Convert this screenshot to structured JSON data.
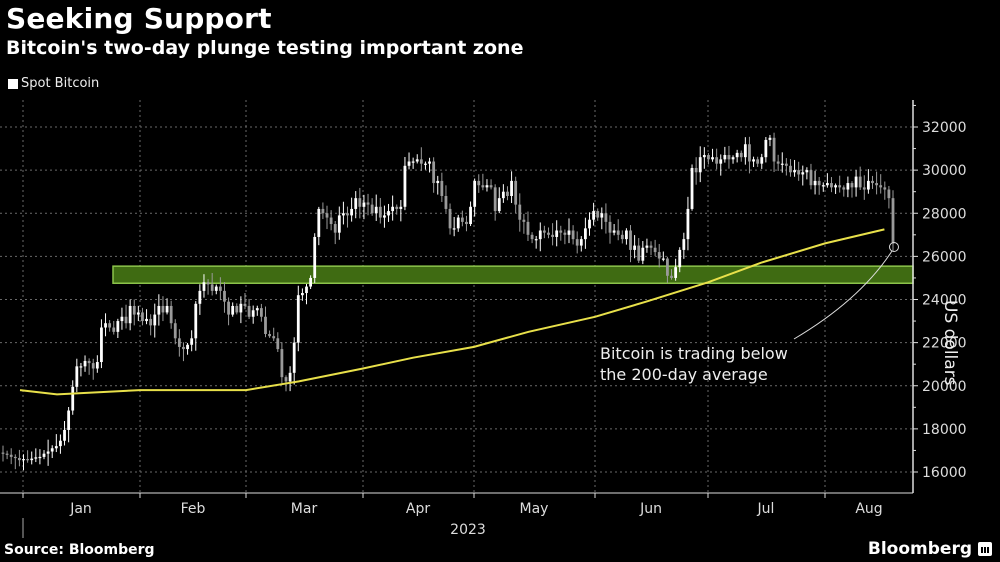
{
  "header": {
    "title": "Seeking Support",
    "subtitle": "Bitcoin's two-day plunge testing important zone"
  },
  "legend": {
    "items": [
      {
        "label": "Spot Bitcoin",
        "color": "#ffffff",
        "icon": "square-swatch-icon"
      }
    ]
  },
  "footer": {
    "source": "Source: Bloomberg",
    "brand": "Bloomberg",
    "brand_icon": "bloomberg-chart-icon"
  },
  "annotation": {
    "line1": "Bitcoin is trading below",
    "line2": "the 200-day average"
  },
  "colors": {
    "background": "#000000",
    "up_candle": "#ffffff",
    "down_candle": "#9a9a9a",
    "ma_line": "#e8e04a",
    "support_zone_fill": "#3f6b12",
    "support_zone_border": "#8cc34b",
    "grid": "#6a6a6a"
  },
  "chart_data": {
    "type": "line",
    "title": "Seeking Support",
    "subtitle": "Bitcoin's two-day plunge testing important zone",
    "xlabel": "2023",
    "ylabel": "US dollars",
    "ylim": [
      15000,
      32500
    ],
    "y_ticks": [
      16000,
      18000,
      20000,
      22000,
      24000,
      26000,
      28000,
      30000,
      32000
    ],
    "x_ticks": [
      "Jan",
      "Feb",
      "Mar",
      "Apr",
      "May",
      "Jun",
      "Jul",
      "Aug"
    ],
    "x_year_label": "2023",
    "grid": true,
    "legend_position": "top-left",
    "support_zone": {
      "low": 24800,
      "high": 25500,
      "start": "Jan 20",
      "end": "Aug 17"
    },
    "series": [
      {
        "name": "Spot Bitcoin",
        "style": "candlestick",
        "dates_start": "2022-12-25",
        "frequency": "daily",
        "close": [
          16850,
          16800,
          16700,
          16650,
          16550,
          16600,
          16550,
          16620,
          16680,
          16700,
          16850,
          16950,
          17100,
          17200,
          17450,
          17950,
          18850,
          19950,
          20900,
          20900,
          21150,
          21050,
          20800,
          21100,
          22700,
          22900,
          22700,
          22500,
          23000,
          23200,
          22900,
          23700,
          23300,
          23400,
          23000,
          23100,
          22800,
          23300,
          23700,
          23400,
          23700,
          22900,
          22200,
          21800,
          21700,
          21900,
          22200,
          23800,
          24400,
          24800,
          24700,
          24400,
          24600,
          24400,
          23900,
          23300,
          23700,
          23400,
          23800,
          23700,
          23200,
          23500,
          23600,
          23200,
          22400,
          22300,
          22200,
          21700,
          20400,
          20200,
          20600,
          22000,
          24200,
          24300,
          24600,
          25000,
          26900,
          28200,
          28000,
          27800,
          27500,
          27100,
          27900,
          28000,
          27900,
          28200,
          28700,
          28300,
          28500,
          28400,
          28000,
          28300,
          27800,
          27900,
          28100,
          28300,
          28200,
          28300,
          30200,
          30400,
          30400,
          30500,
          30300,
          30300,
          30400,
          29400,
          29500,
          28800,
          28200,
          27300,
          27300,
          27800,
          27600,
          27500,
          28300,
          29500,
          29300,
          29200,
          29300,
          29200,
          28100,
          28700,
          29000,
          28800,
          29500,
          28400,
          27700,
          27600,
          27000,
          26800,
          26800,
          27200,
          27100,
          27000,
          26900,
          27200,
          27100,
          27000,
          27200,
          26800,
          26500,
          26800,
          27300,
          27700,
          28100,
          27800,
          28000,
          27600,
          27100,
          27200,
          27000,
          26800,
          27200,
          26300,
          26500,
          25800,
          26400,
          26500,
          26400,
          26200,
          25900,
          25900,
          25100,
          25000,
          25500,
          26300,
          26800,
          28200,
          30100,
          29900,
          30600,
          30700,
          30500,
          30600,
          30300,
          30500,
          30700,
          30500,
          30600,
          30800,
          30600,
          31200,
          30400,
          30500,
          30300,
          30600,
          31400,
          31500,
          30400,
          30300,
          30300,
          30200,
          29900,
          30000,
          29800,
          29900,
          30000,
          29300,
          29500,
          29300,
          29300,
          29400,
          29200,
          29300,
          29200,
          29100,
          29400,
          29200,
          29700,
          29200,
          29100,
          29500,
          29400,
          29300,
          29200,
          29100,
          28700,
          26600
        ],
        "values_note": "approximate daily closes read from candle bodies"
      },
      {
        "name": "200-day moving average",
        "style": "line",
        "color": "#e8e04a",
        "points": [
          {
            "date": "Dec 25",
            "value": 19800
          },
          {
            "date": "Jan 10",
            "value": 19600
          },
          {
            "date": "Feb 1",
            "value": 19800
          },
          {
            "date": "Mar 1",
            "value": 19800
          },
          {
            "date": "Mar 15",
            "value": 20200
          },
          {
            "date": "Apr 1",
            "value": 20800
          },
          {
            "date": "Apr 15",
            "value": 21300
          },
          {
            "date": "May 1",
            "value": 21800
          },
          {
            "date": "May 15",
            "value": 22500
          },
          {
            "date": "Jun 1",
            "value": 23200
          },
          {
            "date": "Jun 15",
            "value": 23900
          },
          {
            "date": "Jul 1",
            "value": 24800
          },
          {
            "date": "Jul 15",
            "value": 25700
          },
          {
            "date": "Aug 1",
            "value": 26600
          },
          {
            "date": "Aug 17",
            "value": 27250
          }
        ]
      }
    ],
    "annotations": [
      {
        "text": "Bitcoin is trading below the 200-day average",
        "target_date": "Aug 17",
        "target_value": 26500
      }
    ]
  }
}
